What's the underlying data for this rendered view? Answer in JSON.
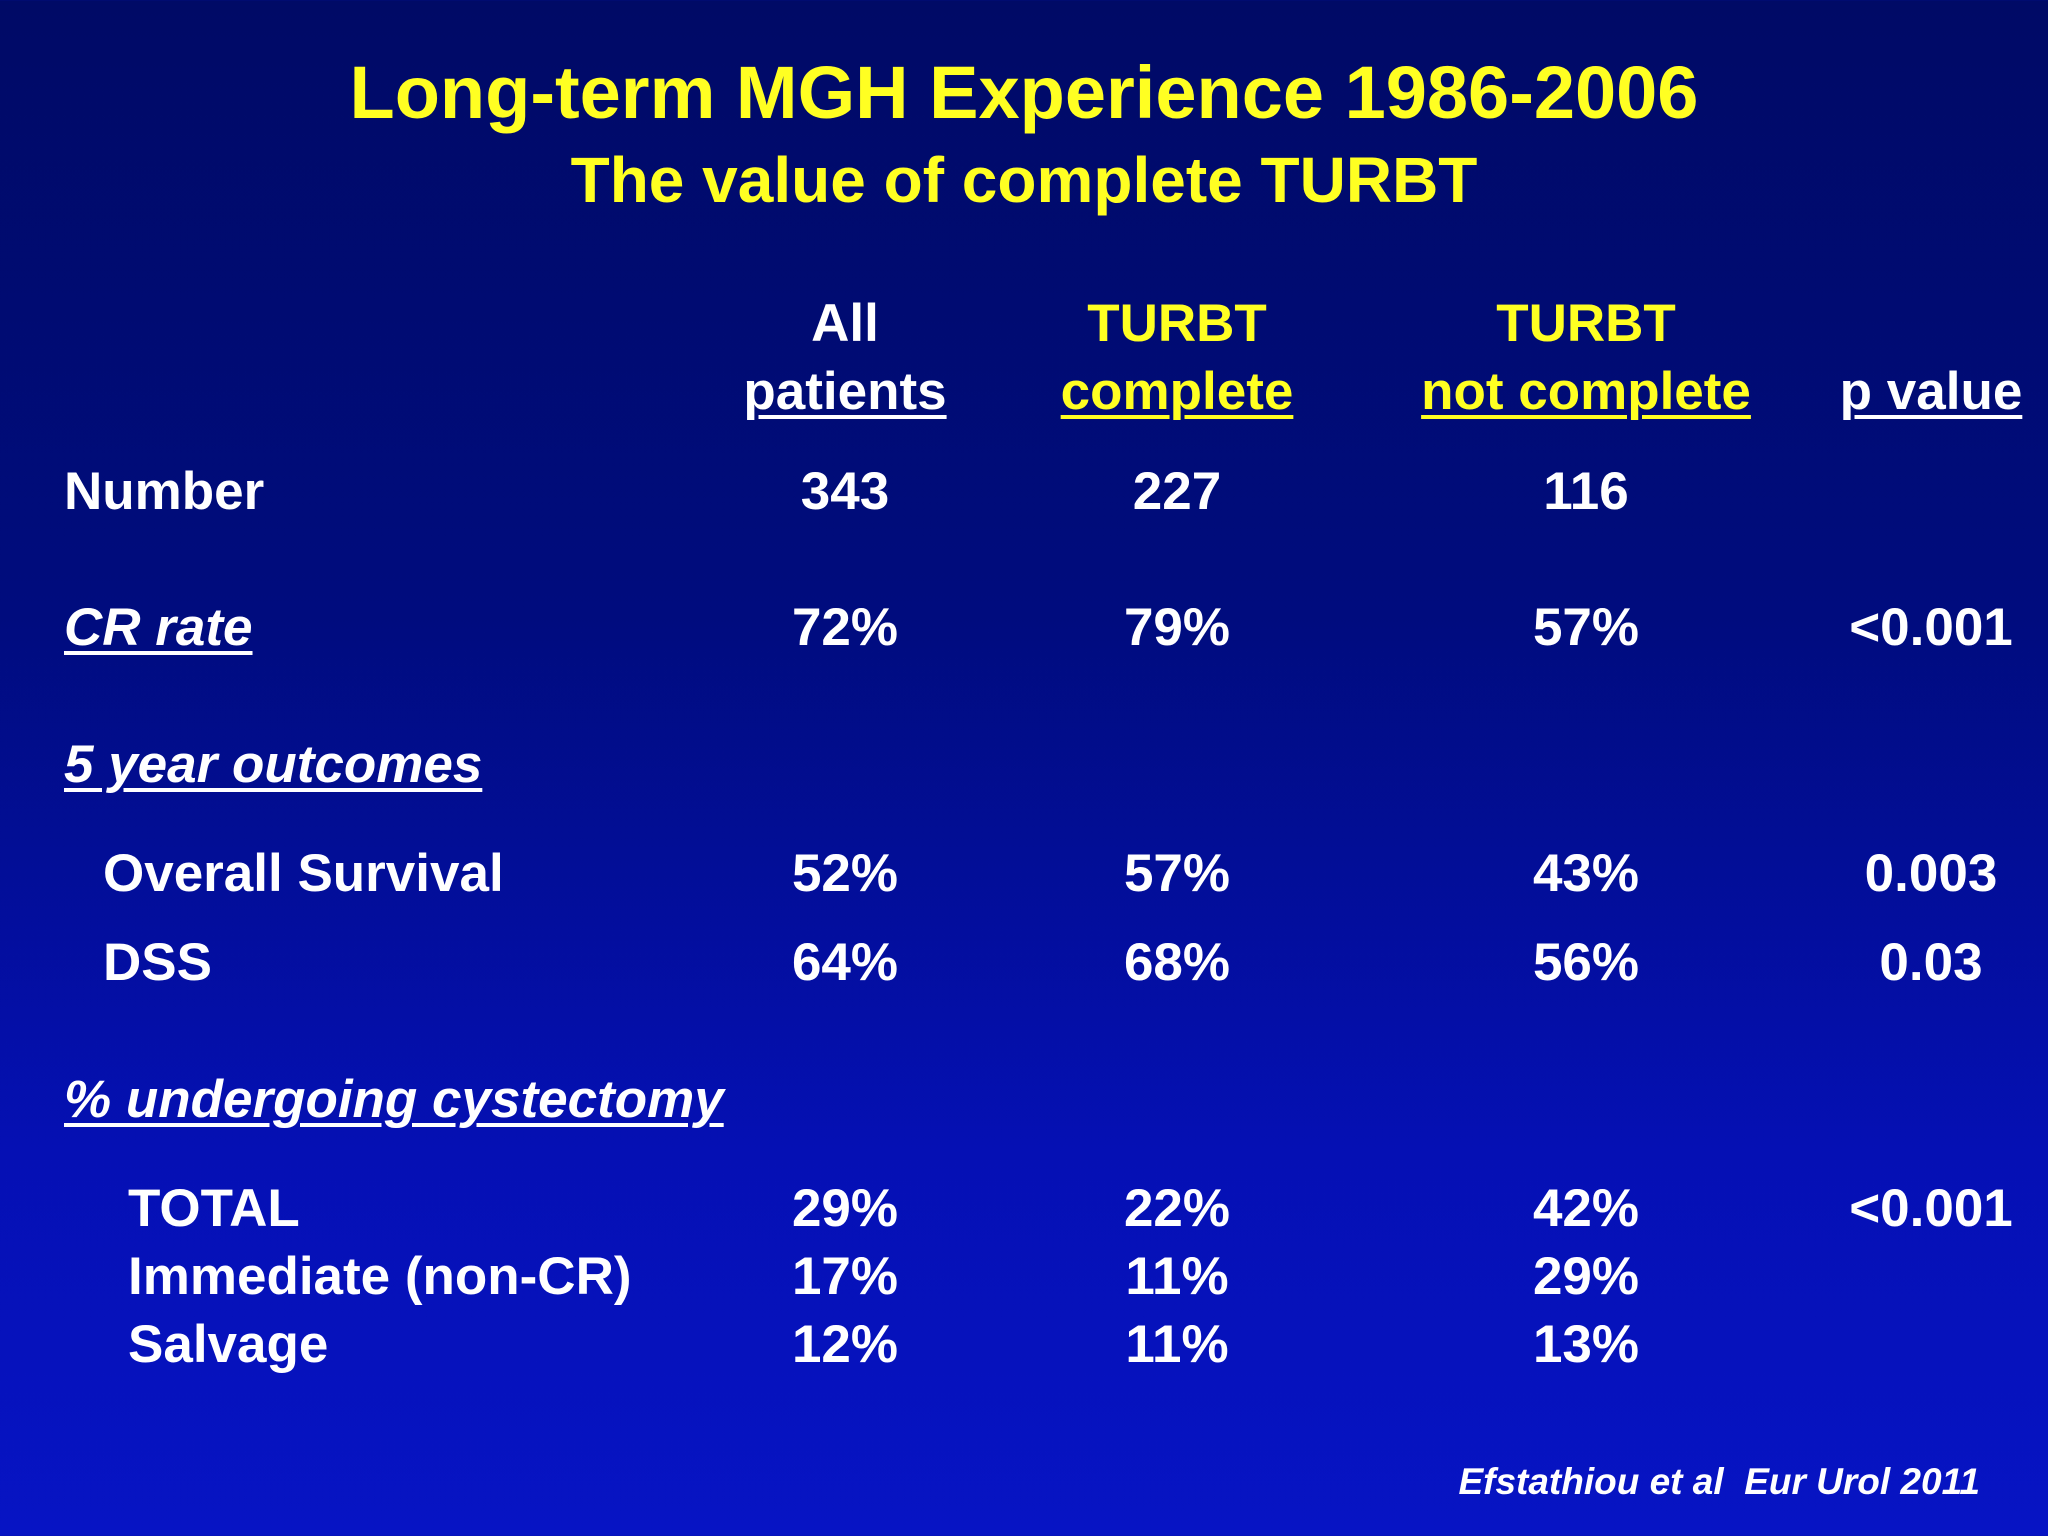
{
  "title": "Long-term MGH Experience 1986-2006",
  "subtitle": "The value of complete TURBT",
  "columns": [
    {
      "line1": "All",
      "line2": "patients"
    },
    {
      "line1": "TURBT",
      "line2": "complete"
    },
    {
      "line1": "TURBT",
      "line2": "not complete"
    },
    {
      "line1": "",
      "line2": "p value"
    }
  ],
  "rows": {
    "number": {
      "label": "Number",
      "all": "343",
      "complete": "227",
      "not_complete": "116",
      "p": ""
    },
    "cr_rate": {
      "label": "CR rate",
      "all": "72%",
      "complete": "79%",
      "not_complete": "57%",
      "p": "<0.001"
    },
    "five_year_header": {
      "label": "5 year outcomes"
    },
    "overall_survival": {
      "label": "Overall Survival",
      "all": "52%",
      "complete": "57%",
      "not_complete": "43%",
      "p": "0.003"
    },
    "dss": {
      "label": "DSS",
      "all": "64%",
      "complete": "68%",
      "not_complete": "56%",
      "p": "0.03"
    },
    "cystectomy_header": {
      "label": "% undergoing cystectomy"
    },
    "total": {
      "label": "TOTAL",
      "all": "29%",
      "complete": "22%",
      "not_complete": "42%",
      "p": "<0.001"
    },
    "immediate": {
      "label": "Immediate (non-CR)",
      "all": "17%",
      "complete": "11%",
      "not_complete": "29%",
      "p": ""
    },
    "salvage": {
      "label": "Salvage",
      "all": "12%",
      "complete": "11%",
      "not_complete": "13%",
      "p": ""
    }
  },
  "citation": "Efstathiou et al  Eur Urol 2011",
  "colors": {
    "title": "#ffff22",
    "text": "#ffffff",
    "background_top": "#000a66",
    "background_bottom": "#0714c4"
  }
}
